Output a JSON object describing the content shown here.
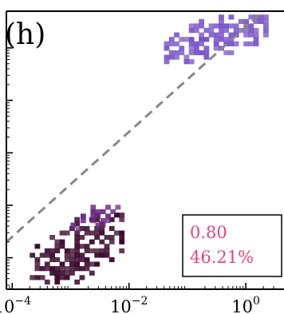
{
  "panel_label": "(h)",
  "annotation": {
    "line1": "0.80",
    "line2": "46.21%",
    "color": "#e8457a"
  },
  "colors": {
    "cluster_low": "#3a0a2c",
    "cluster_mid": "#6a2a82",
    "cluster_high": "#7a55c8",
    "diagonal": "#888888",
    "axes": "#000000"
  },
  "chart_data": {
    "type": "heatmap",
    "title": "",
    "xlabel": "",
    "ylabel": "",
    "xscale": "log",
    "yscale": "log",
    "x_tick_labels": [
      {
        "value": 0.0001,
        "base": "10",
        "exp": "−4"
      },
      {
        "value": 0.01,
        "base": "10",
        "exp": "−2"
      },
      {
        "value": 1,
        "base": "10",
        "exp": "0"
      }
    ],
    "y_major_ticks_log10": [
      -4.4,
      -3.4,
      -2.4,
      -1.4,
      -0.4
    ],
    "xlim_log10": [
      -4.1,
      0.6
    ],
    "ylim_log10": [
      -5.0,
      0.3
    ],
    "reference_line": "y = x (dashed)",
    "clusters": [
      {
        "name_hint": "low",
        "x_log10_range": [
          -3.7,
          -2.1
        ],
        "y_log10_range": [
          -4.9,
          -3.6
        ],
        "color": "#3a0a2c"
      },
      {
        "name_hint": "mid",
        "x_log10_range": [
          -3.0,
          -2.2
        ],
        "y_log10_range": [
          -3.9,
          -3.4
        ],
        "color": "#6a2a82"
      },
      {
        "name_hint": "high",
        "x_log10_range": [
          -1.4,
          0.3
        ],
        "y_log10_range": [
          -0.7,
          0.2
        ],
        "color": "#7a55c8"
      }
    ]
  }
}
